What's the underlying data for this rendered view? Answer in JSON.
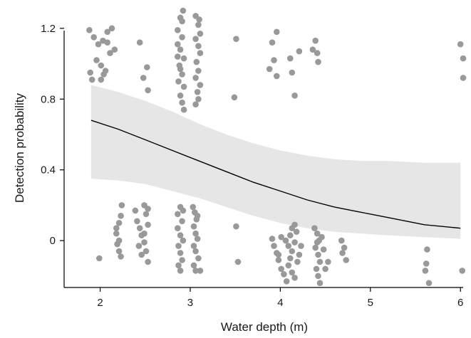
{
  "chart_data": {
    "type": "scatter",
    "xlabel": "Water depth (m)",
    "ylabel": "Detection probability",
    "xlim": [
      1.6,
      6.03
    ],
    "ylim": [
      -0.265,
      1.32
    ],
    "x_ticks": [
      2,
      3,
      4,
      5,
      6
    ],
    "x_tick_labels": [
      "2",
      "3",
      "4",
      "5",
      "6"
    ],
    "y_ticks": [
      0,
      0.4,
      0.8,
      1.2
    ],
    "y_tick_labels": [
      "0",
      "0.4",
      "0.8",
      "1.2"
    ],
    "grid": false,
    "legend": "none",
    "colors": {
      "points": "#999999",
      "band": "#e6e6e6",
      "line": "#000000",
      "axis": "#000000"
    },
    "fitted_line": {
      "x": [
        1.9,
        2.2,
        2.5,
        2.8,
        3.1,
        3.4,
        3.7,
        4.0,
        4.3,
        4.6,
        4.9,
        5.2,
        5.6,
        6.0
      ],
      "y": [
        0.68,
        0.63,
        0.57,
        0.51,
        0.45,
        0.39,
        0.33,
        0.28,
        0.23,
        0.19,
        0.16,
        0.13,
        0.09,
        0.07
      ]
    },
    "confidence_band": {
      "x": [
        1.9,
        2.2,
        2.5,
        2.8,
        3.1,
        3.4,
        3.7,
        4.0,
        4.3,
        4.6,
        4.9,
        5.2,
        5.6,
        6.0
      ],
      "upper": [
        0.88,
        0.84,
        0.79,
        0.73,
        0.66,
        0.6,
        0.55,
        0.51,
        0.48,
        0.46,
        0.45,
        0.45,
        0.44,
        0.44
      ],
      "lower": [
        0.35,
        0.34,
        0.32,
        0.28,
        0.24,
        0.19,
        0.14,
        0.1,
        0.07,
        0.05,
        0.04,
        0.03,
        0.02,
        0.01
      ]
    },
    "points": [
      [
        1.88,
        1.19
      ],
      [
        1.93,
        1.15
      ],
      [
        1.98,
        1.11
      ],
      [
        2.03,
        1.13
      ],
      [
        2.08,
        1.18
      ],
      [
        2.13,
        1.2
      ],
      [
        1.89,
        0.95
      ],
      [
        1.96,
        1.02
      ],
      [
        2.01,
        0.99
      ],
      [
        2.06,
        0.96
      ],
      [
        2.11,
        1.06
      ],
      [
        2.08,
        1.12
      ],
      [
        2.16,
        1.08
      ],
      [
        1.91,
        0.91
      ],
      [
        2.01,
        0.91
      ],
      [
        2.04,
        0.94
      ],
      [
        1.99,
        -0.1
      ],
      [
        2.44,
        1.12
      ],
      [
        2.52,
        0.98
      ],
      [
        2.48,
        0.92
      ],
      [
        2.53,
        0.85
      ],
      [
        2.18,
        0.04
      ],
      [
        2.21,
        0.1
      ],
      [
        2.23,
        0.14
      ],
      [
        2.24,
        0.2
      ],
      [
        2.19,
        -0.02
      ],
      [
        2.21,
        -0.06
      ],
      [
        2.23,
        -0.09
      ],
      [
        2.18,
        0.07
      ],
      [
        2.21,
        0.0
      ],
      [
        2.39,
        0.17
      ],
      [
        2.41,
        0.11
      ],
      [
        2.44,
        0.07
      ],
      [
        2.46,
        0.03
      ],
      [
        2.49,
        -0.01
      ],
      [
        2.43,
        -0.03
      ],
      [
        2.46,
        -0.08
      ],
      [
        2.49,
        0.2
      ],
      [
        2.53,
        0.18
      ],
      [
        2.51,
        0.15
      ],
      [
        2.53,
        0.09
      ],
      [
        2.49,
        0.04
      ],
      [
        2.51,
        -0.06
      ],
      [
        2.53,
        -0.12
      ],
      [
        2.89,
        1.26
      ],
      [
        2.91,
        1.24
      ],
      [
        2.86,
        1.19
      ],
      [
        2.91,
        1.15
      ],
      [
        2.86,
        1.11
      ],
      [
        2.89,
        1.08
      ],
      [
        2.93,
        1.03
      ],
      [
        2.88,
        0.99
      ],
      [
        2.91,
        0.94
      ],
      [
        2.87,
        0.9
      ],
      [
        2.93,
        0.87
      ],
      [
        2.89,
        0.82
      ],
      [
        2.91,
        0.78
      ],
      [
        2.93,
        0.74
      ],
      [
        2.86,
        1.04
      ],
      [
        2.89,
        0.97
      ],
      [
        2.92,
        1.3
      ],
      [
        3.06,
        1.27
      ],
      [
        3.09,
        1.22
      ],
      [
        3.11,
        1.17
      ],
      [
        3.06,
        1.14
      ],
      [
        3.09,
        1.1
      ],
      [
        3.11,
        1.06
      ],
      [
        3.07,
        1.01
      ],
      [
        3.09,
        0.96
      ],
      [
        3.06,
        0.92
      ],
      [
        3.11,
        0.88
      ],
      [
        3.08,
        0.84
      ],
      [
        3.09,
        0.8
      ],
      [
        3.06,
        0.77
      ],
      [
        3.1,
        1.25
      ],
      [
        2.86,
        0.15
      ],
      [
        2.89,
        0.19
      ],
      [
        2.91,
        0.11
      ],
      [
        2.86,
        0.07
      ],
      [
        2.89,
        0.03
      ],
      [
        2.92,
        0.0
      ],
      [
        2.87,
        -0.03
      ],
      [
        2.89,
        -0.07
      ],
      [
        2.91,
        -0.11
      ],
      [
        2.87,
        -0.14
      ],
      [
        2.89,
        -0.17
      ],
      [
        2.92,
        0.17
      ],
      [
        3.03,
        0.19
      ],
      [
        3.05,
        0.16
      ],
      [
        3.07,
        0.12
      ],
      [
        3.04,
        0.08
      ],
      [
        3.06,
        0.04
      ],
      [
        3.08,
        0.01
      ],
      [
        3.04,
        -0.03
      ],
      [
        3.06,
        -0.06
      ],
      [
        3.09,
        -0.1
      ],
      [
        3.04,
        -0.14
      ],
      [
        3.06,
        -0.17
      ],
      [
        3.08,
        0.14
      ],
      [
        3.11,
        -0.17
      ],
      [
        3.51,
        1.14
      ],
      [
        3.49,
        0.81
      ],
      [
        3.51,
        0.08
      ],
      [
        3.53,
        -0.12
      ],
      [
        3.91,
        1.12
      ],
      [
        3.96,
        1.18
      ],
      [
        3.88,
        0.97
      ],
      [
        3.93,
        1.02
      ],
      [
        3.96,
        0.93
      ],
      [
        4.11,
        1.03
      ],
      [
        4.13,
        0.95
      ],
      [
        4.16,
        0.82
      ],
      [
        4.21,
        1.07
      ],
      [
        4.36,
        1.08
      ],
      [
        4.39,
        1.13
      ],
      [
        4.41,
        1.06
      ],
      [
        4.42,
        1.01
      ],
      [
        3.91,
        0.01
      ],
      [
        3.93,
        -0.03
      ],
      [
        3.96,
        -0.07
      ],
      [
        3.98,
        -0.11
      ],
      [
        4.01,
        -0.16
      ],
      [
        4.04,
        -0.19
      ],
      [
        4.07,
        -0.23
      ],
      [
        4.09,
        -0.03
      ],
      [
        4.11,
        0.03
      ],
      [
        4.13,
        0.07
      ],
      [
        4.16,
        0.09
      ],
      [
        4.18,
        0.05
      ],
      [
        4.16,
        -0.01
      ],
      [
        4.13,
        -0.06
      ],
      [
        4.11,
        -0.1
      ],
      [
        4.09,
        -0.14
      ],
      [
        4.13,
        -0.18
      ],
      [
        4.16,
        -0.21
      ],
      [
        4.19,
        -0.12
      ],
      [
        4.21,
        -0.08
      ],
      [
        4.23,
        -0.03
      ],
      [
        4.06,
        0.0
      ],
      [
        3.98,
        -0.08
      ],
      [
        4.01,
        0.02
      ],
      [
        4.38,
        0.07
      ],
      [
        4.41,
        0.04
      ],
      [
        4.43,
        0.0
      ],
      [
        4.39,
        -0.04
      ],
      [
        4.42,
        -0.08
      ],
      [
        4.44,
        -0.12
      ],
      [
        4.4,
        -0.16
      ],
      [
        4.42,
        -0.2
      ],
      [
        4.44,
        -0.24
      ],
      [
        4.46,
        0.02
      ],
      [
        4.48,
        -0.05
      ],
      [
        4.5,
        -0.16
      ],
      [
        4.53,
        -0.12
      ],
      [
        4.41,
        -0.01
      ],
      [
        4.68,
        0.0
      ],
      [
        4.71,
        -0.04
      ],
      [
        4.69,
        -0.07
      ],
      [
        4.73,
        -0.11
      ],
      [
        5.63,
        -0.05
      ],
      [
        5.62,
        -0.13
      ],
      [
        5.61,
        -0.17
      ],
      [
        5.65,
        -0.24
      ],
      [
        6.0,
        1.11
      ],
      [
        6.03,
        1.03
      ],
      [
        6.03,
        0.92
      ],
      [
        6.02,
        -0.17
      ]
    ]
  }
}
